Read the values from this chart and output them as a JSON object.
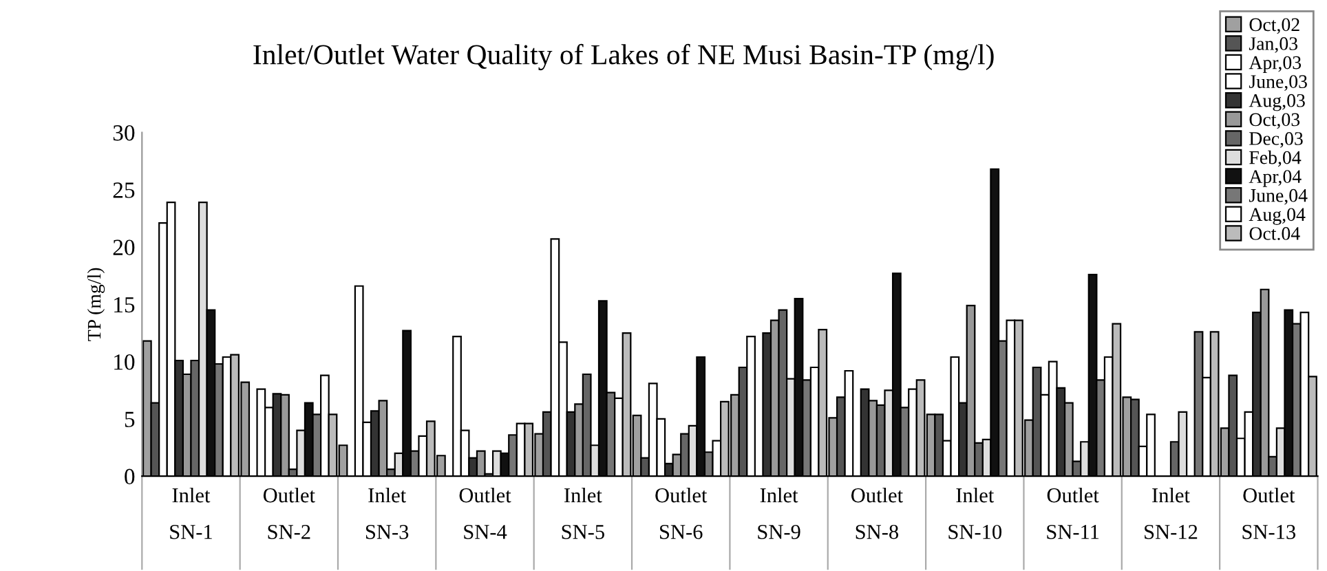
{
  "chart_data": {
    "type": "bar",
    "title": "Inlet/Outlet Water Quality of Lakes of NE Musi Basin-TP (mg/l)",
    "ylabel": "TP (mg/l)",
    "categories": [
      "Inlet\nSN-1",
      "Outlet\nSN-2",
      "Inlet\nSN-3",
      "Outlet\nSN-4",
      "Inlet\nSN-5",
      "Outlet\nSN-6",
      "Inlet\nSN-9",
      "Outlet\nSN-8",
      "Inlet\nSN-10",
      "Outlet\nSN-11",
      "Inlet\nSN-12",
      "Outlet\nSN-13"
    ],
    "ylim": [
      0,
      30
    ],
    "yticks": [
      0,
      5,
      10,
      15,
      20,
      25,
      30
    ],
    "grid": false,
    "legend": "top right",
    "series": [
      {
        "name": "Oct,02",
        "color": "#a0a0a0",
        "values": [
          11.8,
          8.2,
          2.7,
          1.8,
          3.7,
          5.3,
          7.1,
          5.1,
          5.4,
          4.9,
          6.9,
          4.2
        ]
      },
      {
        "name": "Jan,03",
        "color": "#555555",
        "values": [
          6.4,
          null,
          null,
          null,
          5.6,
          1.6,
          9.5,
          6.9,
          5.4,
          9.5,
          6.7,
          8.8
        ]
      },
      {
        "name": "Apr,03",
        "color": "#ffffff",
        "values": [
          22.1,
          7.6,
          16.6,
          12.2,
          20.7,
          8.1,
          12.2,
          9.2,
          3.1,
          7.1,
          2.6,
          3.3
        ]
      },
      {
        "name": "June,03",
        "color": "#ffffff",
        "values": [
          23.9,
          6.0,
          4.7,
          4.0,
          11.7,
          5.0,
          null,
          null,
          10.4,
          10.0,
          5.4,
          5.6
        ]
      },
      {
        "name": "Aug,03",
        "color": "#333333",
        "values": [
          10.1,
          7.2,
          5.7,
          1.6,
          5.6,
          1.1,
          12.5,
          7.6,
          6.4,
          7.7,
          null,
          14.3
        ]
      },
      {
        "name": "Oct,03",
        "color": "#999999",
        "values": [
          8.9,
          7.1,
          6.6,
          2.2,
          6.3,
          1.9,
          13.6,
          6.6,
          14.9,
          6.4,
          null,
          16.3
        ]
      },
      {
        "name": "Dec,03",
        "color": "#666666",
        "values": [
          10.1,
          0.6,
          0.6,
          0.2,
          8.9,
          3.7,
          14.5,
          6.2,
          2.9,
          1.3,
          3.0,
          1.7
        ]
      },
      {
        "name": "Feb,04",
        "color": "#dddddd",
        "values": [
          23.9,
          4.0,
          2.0,
          2.2,
          2.7,
          4.4,
          8.5,
          7.5,
          3.2,
          3.0,
          5.6,
          4.2
        ]
      },
      {
        "name": "Apr,04",
        "color": "#111111",
        "values": [
          14.5,
          6.4,
          12.7,
          2.0,
          15.3,
          10.4,
          15.5,
          17.7,
          26.8,
          17.6,
          null,
          14.5
        ]
      },
      {
        "name": "June,04",
        "color": "#777777",
        "values": [
          9.8,
          5.4,
          2.2,
          3.6,
          7.3,
          2.1,
          8.4,
          6.0,
          11.8,
          8.4,
          12.6,
          13.3
        ]
      },
      {
        "name": "Aug,04",
        "color": "#ffffff",
        "values": [
          10.4,
          8.8,
          3.5,
          4.6,
          6.8,
          3.1,
          9.5,
          7.6,
          13.6,
          10.4,
          8.6,
          14.3
        ]
      },
      {
        "name": "Oct.04",
        "color": "#bbbbbb",
        "values": [
          10.6,
          5.4,
          4.8,
          4.6,
          12.5,
          6.5,
          12.8,
          8.4,
          13.6,
          13.3,
          12.6,
          8.7
        ]
      }
    ]
  }
}
